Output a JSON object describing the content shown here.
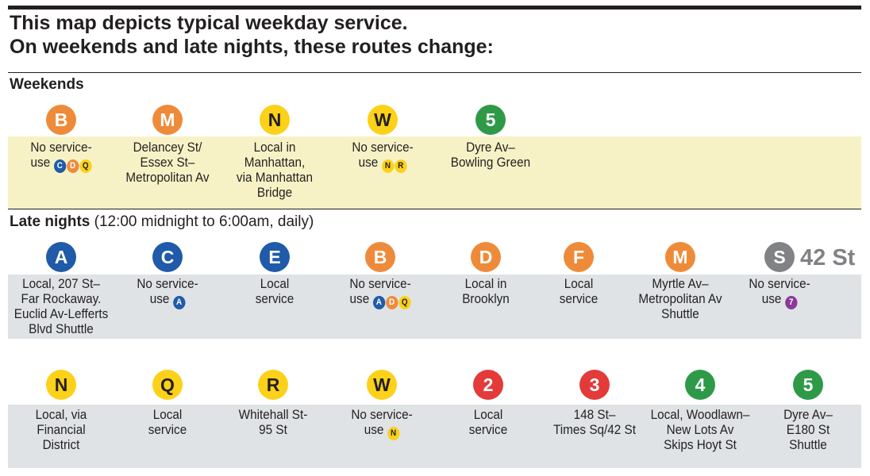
{
  "title_lines": [
    "This map depicts typical weekday service.",
    "On weekends and late nights, these routes change:"
  ],
  "colors": {
    "blue": "#1f5ba8",
    "orange": "#ee8b3a",
    "yellow": "#fcd119",
    "green": "#2e9a48",
    "red": "#e23b3a",
    "gray": "#808285",
    "purple": "#8a3a98",
    "weekend_band": "#f7f2c6",
    "late_band": "#dfe3e6"
  },
  "weekends": {
    "title": "Weekends",
    "items": [
      {
        "bullet": "B",
        "color": "orange",
        "lines": [
          "No service-",
          "use"
        ],
        "alts": [
          {
            "l": "C",
            "c": "blue"
          },
          {
            "l": "D",
            "c": "orange"
          },
          {
            "l": "Q",
            "c": "yellow"
          }
        ]
      },
      {
        "bullet": "M",
        "color": "orange",
        "lines": [
          "Delancey St/",
          "Essex St–",
          "Metropolitan Av"
        ]
      },
      {
        "bullet": "N",
        "color": "yellow",
        "lines": [
          "Local in",
          "Manhattan,",
          "via Manhattan",
          "Bridge"
        ]
      },
      {
        "bullet": "W",
        "color": "yellow",
        "lines": [
          "No service-",
          "use"
        ],
        "alts": [
          {
            "l": "N",
            "c": "yellow"
          },
          {
            "l": "R",
            "c": "yellow"
          }
        ]
      },
      {
        "bullet": "5",
        "color": "green",
        "lines": [
          "Dyre Av–",
          "Bowling Green"
        ]
      }
    ]
  },
  "late_nights": {
    "title": "Late nights",
    "subtitle": "(12:00 midnight to 6:00am, daily)",
    "shuttle_label": "42 St",
    "row1": [
      {
        "bullet": "A",
        "color": "blue",
        "lines": [
          "Local, 207 St–",
          "Far Rockaway.",
          "Euclid Av-Lefferts",
          "Blvd Shuttle"
        ]
      },
      {
        "bullet": "C",
        "color": "blue",
        "lines": [
          "No service-",
          "use"
        ],
        "alts": [
          {
            "l": "A",
            "c": "blue"
          }
        ]
      },
      {
        "bullet": "E",
        "color": "blue",
        "lines": [
          "Local",
          "service"
        ]
      },
      {
        "bullet": "B",
        "color": "orange",
        "lines": [
          "No service-",
          "use"
        ],
        "alts": [
          {
            "l": "A",
            "c": "blue"
          },
          {
            "l": "D",
            "c": "orange"
          },
          {
            "l": "Q",
            "c": "yellow"
          }
        ]
      },
      {
        "bullet": "D",
        "color": "orange",
        "lines": [
          "Local in",
          "Brooklyn"
        ]
      },
      {
        "bullet": "F",
        "color": "orange",
        "lines": [
          "Local",
          "service"
        ]
      },
      {
        "bullet": "M",
        "color": "orange",
        "lines": [
          "Myrtle Av–",
          "Metropolitan Av",
          "Shuttle"
        ]
      },
      {
        "bullet": "S",
        "color": "gray",
        "lines": [
          "No service-",
          "use"
        ],
        "alts": [
          {
            "l": "7",
            "c": "purple"
          }
        ]
      }
    ],
    "row2": [
      {
        "bullet": "N",
        "color": "yellow",
        "lines": [
          "Local, via",
          "Financial",
          "District"
        ]
      },
      {
        "bullet": "Q",
        "color": "yellow",
        "lines": [
          "Local",
          "service"
        ]
      },
      {
        "bullet": "R",
        "color": "yellow",
        "lines": [
          "Whitehall St-",
          "95 St"
        ]
      },
      {
        "bullet": "W",
        "color": "yellow",
        "lines": [
          "No service-",
          "use"
        ],
        "alts": [
          {
            "l": "N",
            "c": "yellow"
          }
        ]
      },
      {
        "bullet": "2",
        "color": "red",
        "lines": [
          "Local",
          "service"
        ]
      },
      {
        "bullet": "3",
        "color": "red",
        "lines": [
          "148 St–",
          "Times Sq/42 St"
        ]
      },
      {
        "bullet": "4",
        "color": "green",
        "lines": [
          "Local, Woodlawn–",
          "New Lots Av",
          "Skips Hoyt St"
        ]
      },
      {
        "bullet": "5",
        "color": "green",
        "lines": [
          "Dyre Av–",
          "E180 St",
          "Shuttle"
        ]
      }
    ]
  }
}
